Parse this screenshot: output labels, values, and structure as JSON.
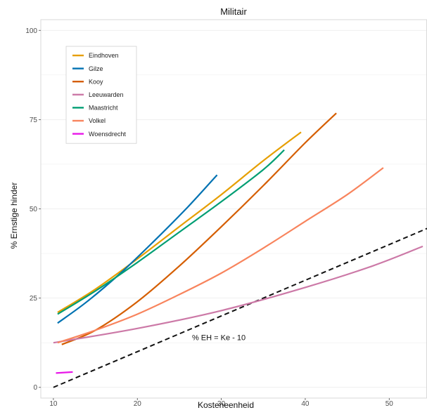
{
  "chart_data": {
    "type": "line",
    "title": "Militair",
    "xlabel": "Kosteneenheid",
    "ylabel": "% Ernstige hinder",
    "xlim": [
      8.5,
      54.5
    ],
    "ylim": [
      -3,
      103
    ],
    "xticks": [
      10,
      20,
      30,
      40,
      50
    ],
    "yticks": [
      0,
      25,
      50,
      75,
      100
    ],
    "grid": true,
    "legend_position": "top-left",
    "series": [
      {
        "name": "Eindhoven",
        "color": "#E69F00",
        "x": [
          10.5,
          15,
          20,
          25,
          30,
          35,
          39.5
        ],
        "y": [
          21,
          27.5,
          36,
          45,
          54,
          63.5,
          71.5
        ]
      },
      {
        "name": "Gilze",
        "color": "#0072B2",
        "x": [
          10.5,
          14,
          18,
          22,
          26,
          29.5
        ],
        "y": [
          18,
          24,
          32,
          41,
          50.5,
          59.5
        ]
      },
      {
        "name": "Kooy",
        "color": "#D55E00",
        "x": [
          11,
          15,
          20,
          25,
          30,
          35,
          40,
          43.7
        ],
        "y": [
          12,
          16,
          24,
          34,
          45,
          56.5,
          68.5,
          76.8
        ]
      },
      {
        "name": "Leeuwarden",
        "color": "#CC79A7",
        "x": [
          10,
          20,
          30,
          40,
          48,
          54
        ],
        "y": [
          12.5,
          16.5,
          21.5,
          28,
          34,
          39.5
        ]
      },
      {
        "name": "Maastricht",
        "color": "#009E73",
        "x": [
          10.5,
          15,
          20,
          25,
          30,
          35,
          37.5
        ],
        "y": [
          20.5,
          27,
          35,
          43.5,
          52,
          61,
          66.5
        ]
      },
      {
        "name": "Volkel",
        "color": "#F8845D",
        "x": [
          10.5,
          15,
          20,
          25,
          30,
          35,
          40,
          45,
          49.3
        ],
        "y": [
          12.5,
          16,
          20.5,
          26,
          32,
          39,
          46.5,
          54,
          61.5
        ]
      },
      {
        "name": "Woensdrecht",
        "color": "#E817E8",
        "x": [
          10.3,
          12.3
        ],
        "y": [
          4,
          4.3
        ]
      }
    ],
    "reference_line": {
      "x": [
        10,
        57
      ],
      "y": [
        0,
        47
      ],
      "color": "#111111",
      "dashed": true
    },
    "annotations": [
      {
        "text": "% EH = Ke - 10",
        "x": 29.7,
        "y": 14
      }
    ]
  }
}
